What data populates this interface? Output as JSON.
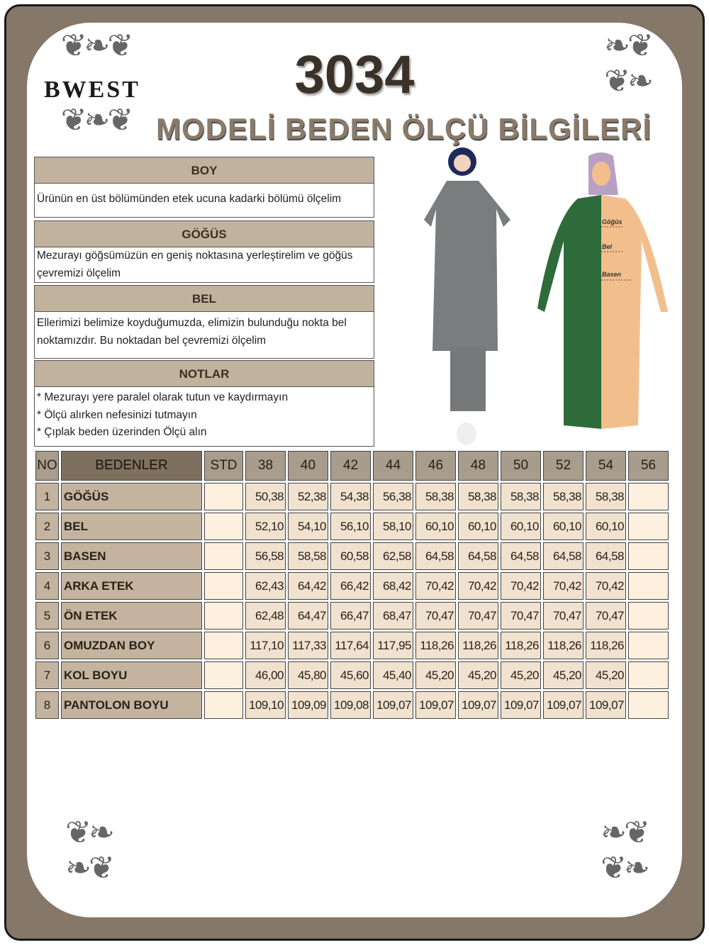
{
  "brand": "BWEST",
  "model_number": "3034",
  "subtitle": "MODELİ BEDEN ÖLÇÜ BİLGİLERİ",
  "sections": [
    {
      "title": "BOY",
      "lines": [
        "Ürünün en üst bölümünden etek ucuna kadarki bölümü ölçelim"
      ]
    },
    {
      "title": "GÖĞÜS",
      "lines": [
        "Mezurayı göğsümüzün en geniş noktasına yerleştirelim ve göğüs",
        "çevremizi ölçelim"
      ]
    },
    {
      "title": "BEL",
      "lines": [
        "Ellerimizi belimize koyduğumuzda, elimizin bulunduğu nokta bel",
        "noktamızdır. Bu noktadan bel çevremizi ölçelim"
      ]
    },
    {
      "title": "NOTLAR",
      "lines": [
        "* Mezurayı yere paralel olarak tutun ve kaydırmayın",
        "* Ölçü alırken nefesinizi tutmayın",
        "* Çıplak beden üzerinden Ölçü alın"
      ]
    }
  ],
  "diagram_labels": {
    "chest": "Göğüs",
    "waist": "Bel",
    "hip": "Basen"
  },
  "table": {
    "headers": [
      "NO",
      "BEDENLER",
      "STD",
      "38",
      "40",
      "42",
      "44",
      "46",
      "48",
      "50",
      "52",
      "54",
      "56"
    ],
    "rows": [
      {
        "no": "1",
        "label": "GÖĞÜS",
        "std": "",
        "values": [
          "50,38",
          "52,38",
          "54,38",
          "56,38",
          "58,38",
          "58,38",
          "58,38",
          "58,38",
          "58,38",
          ""
        ]
      },
      {
        "no": "2",
        "label": "BEL",
        "std": "",
        "values": [
          "52,10",
          "54,10",
          "56,10",
          "58,10",
          "60,10",
          "60,10",
          "60,10",
          "60,10",
          "60,10",
          ""
        ]
      },
      {
        "no": "3",
        "label": "BASEN",
        "std": "",
        "values": [
          "56,58",
          "58,58",
          "60,58",
          "62,58",
          "64,58",
          "64,58",
          "64,58",
          "64,58",
          "64,58",
          ""
        ]
      },
      {
        "no": "4",
        "label": "ARKA ETEK",
        "std": "",
        "values": [
          "62,43",
          "64,42",
          "66,42",
          "68,42",
          "70,42",
          "70,42",
          "70,42",
          "70,42",
          "70,42",
          ""
        ]
      },
      {
        "no": "5",
        "label": "ÖN ETEK",
        "std": "",
        "values": [
          "62,48",
          "64,47",
          "66,47",
          "68,47",
          "70,47",
          "70,47",
          "70,47",
          "70,47",
          "70,47",
          ""
        ]
      },
      {
        "no": "6",
        "label": "OMUZDAN BOY",
        "std": "",
        "values": [
          "117,10",
          "117,33",
          "117,64",
          "117,95",
          "118,26",
          "118,26",
          "118,26",
          "118,26",
          "118,26",
          ""
        ]
      },
      {
        "no": "7",
        "label": "KOL BOYU",
        "std": "",
        "values": [
          "46,00",
          "45,80",
          "45,60",
          "45,40",
          "45,20",
          "45,20",
          "45,20",
          "45,20",
          "45,20",
          ""
        ]
      },
      {
        "no": "8",
        "label": "PANTOLON BOYU",
        "std": "",
        "values": [
          "109,10",
          "109,09",
          "109,08",
          "109,07",
          "109,07",
          "109,07",
          "109,07",
          "109,07",
          "109,07",
          ""
        ]
      }
    ]
  },
  "colors": {
    "frame": "#857868",
    "header": "#a89c8c",
    "label_cell": "#c4b49f",
    "value_cell": "#f0e2cf",
    "empty_cell": "#fdf0df"
  }
}
